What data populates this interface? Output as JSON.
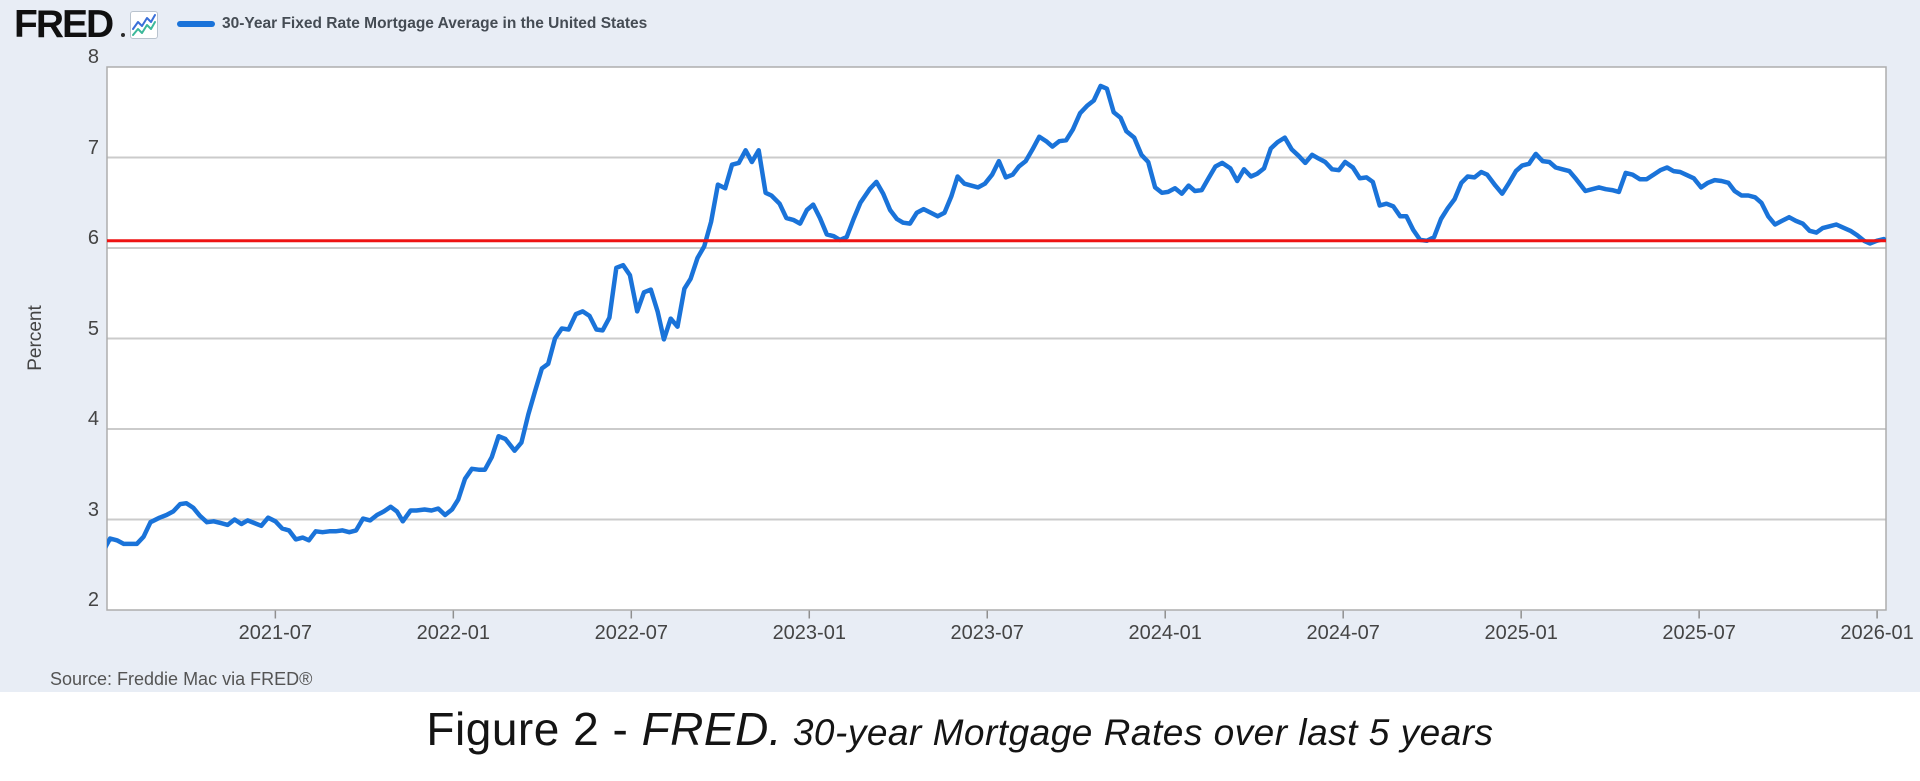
{
  "header": {
    "logo_text": "FRED",
    "logo_icon": "sparkline-chart-icon"
  },
  "source_note": "Source: Freddie Mac via FRED®",
  "caption": {
    "part1": "Figure 2 - ",
    "part2": "FRED.",
    "part3": " 30-year Mortgage Rates over last 5 years"
  },
  "colors": {
    "background": "#e8edf5",
    "plot_background": "#ffffff",
    "gridline": "#cbcbcb",
    "axis_border": "#adadad",
    "tick_mark": "#8f8f8f",
    "series_blue": "#1a73d9",
    "reference_red": "#ee1313",
    "text": "#444444"
  },
  "chart_data": {
    "type": "line",
    "title": "30-Year Fixed Rate Mortgage Average in the United States",
    "ylabel": "Percent",
    "ylim": [
      2,
      8
    ],
    "yticks": [
      2,
      3,
      4,
      5,
      6,
      7,
      8
    ],
    "xtick_labels": [
      "2021-07",
      "2022-01",
      "2022-07",
      "2023-01",
      "2023-07",
      "2024-01",
      "2024-07",
      "2025-01",
      "2025-07",
      "2026-01"
    ],
    "x_range_decimal_year": [
      2021.027,
      2026.025
    ],
    "grid": true,
    "legend_position": "top-left",
    "series": [
      {
        "name": "30-Year Fixed Rate Mortgage Average in the United States",
        "color": "#1a73d9",
        "points": [
          [
            "2021-01-07",
            2.65
          ],
          [
            "2021-01-14",
            2.79
          ],
          [
            "2021-01-21",
            2.77
          ],
          [
            "2021-01-28",
            2.73
          ],
          [
            "2021-02-04",
            2.73
          ],
          [
            "2021-02-11",
            2.73
          ],
          [
            "2021-02-18",
            2.81
          ],
          [
            "2021-02-25",
            2.97
          ],
          [
            "2021-03-04",
            3.02
          ],
          [
            "2021-03-11",
            3.05
          ],
          [
            "2021-03-18",
            3.09
          ],
          [
            "2021-03-25",
            3.17
          ],
          [
            "2021-04-01",
            3.18
          ],
          [
            "2021-04-08",
            3.13
          ],
          [
            "2021-04-15",
            3.04
          ],
          [
            "2021-04-22",
            2.97
          ],
          [
            "2021-04-29",
            2.98
          ],
          [
            "2021-05-06",
            2.96
          ],
          [
            "2021-05-13",
            2.94
          ],
          [
            "2021-05-20",
            3.0
          ],
          [
            "2021-05-27",
            2.95
          ],
          [
            "2021-06-03",
            2.99
          ],
          [
            "2021-06-10",
            2.96
          ],
          [
            "2021-06-17",
            2.93
          ],
          [
            "2021-06-24",
            3.02
          ],
          [
            "2021-07-01",
            2.98
          ],
          [
            "2021-07-08",
            2.9
          ],
          [
            "2021-07-15",
            2.88
          ],
          [
            "2021-07-22",
            2.78
          ],
          [
            "2021-07-29",
            2.8
          ],
          [
            "2021-08-05",
            2.77
          ],
          [
            "2021-08-12",
            2.87
          ],
          [
            "2021-08-19",
            2.86
          ],
          [
            "2021-08-26",
            2.87
          ],
          [
            "2021-09-02",
            2.87
          ],
          [
            "2021-09-09",
            2.88
          ],
          [
            "2021-09-16",
            2.86
          ],
          [
            "2021-09-23",
            2.88
          ],
          [
            "2021-09-30",
            3.01
          ],
          [
            "2021-10-07",
            2.99
          ],
          [
            "2021-10-14",
            3.05
          ],
          [
            "2021-10-21",
            3.09
          ],
          [
            "2021-10-28",
            3.14
          ],
          [
            "2021-11-04",
            3.09
          ],
          [
            "2021-11-10",
            2.98
          ],
          [
            "2021-11-18",
            3.1
          ],
          [
            "2021-11-24",
            3.1
          ],
          [
            "2021-12-02",
            3.11
          ],
          [
            "2021-12-09",
            3.1
          ],
          [
            "2021-12-16",
            3.12
          ],
          [
            "2021-12-23",
            3.05
          ],
          [
            "2021-12-30",
            3.11
          ],
          [
            "2022-01-06",
            3.22
          ],
          [
            "2022-01-13",
            3.45
          ],
          [
            "2022-01-20",
            3.56
          ],
          [
            "2022-01-27",
            3.55
          ],
          [
            "2022-02-03",
            3.55
          ],
          [
            "2022-02-10",
            3.69
          ],
          [
            "2022-02-17",
            3.92
          ],
          [
            "2022-02-24",
            3.89
          ],
          [
            "2022-03-03",
            3.76
          ],
          [
            "2022-03-10",
            3.85
          ],
          [
            "2022-03-17",
            4.16
          ],
          [
            "2022-03-24",
            4.42
          ],
          [
            "2022-03-31",
            4.67
          ],
          [
            "2022-04-07",
            4.72
          ],
          [
            "2022-04-14",
            5.0
          ],
          [
            "2022-04-21",
            5.11
          ],
          [
            "2022-04-28",
            5.1
          ],
          [
            "2022-05-05",
            5.27
          ],
          [
            "2022-05-12",
            5.3
          ],
          [
            "2022-05-19",
            5.25
          ],
          [
            "2022-05-26",
            5.1
          ],
          [
            "2022-06-02",
            5.09
          ],
          [
            "2022-06-09",
            5.23
          ],
          [
            "2022-06-16",
            5.78
          ],
          [
            "2022-06-23",
            5.81
          ],
          [
            "2022-06-30",
            5.7
          ],
          [
            "2022-07-07",
            5.3
          ],
          [
            "2022-07-14",
            5.51
          ],
          [
            "2022-07-21",
            5.54
          ],
          [
            "2022-07-28",
            5.3
          ],
          [
            "2022-08-04",
            4.99
          ],
          [
            "2022-08-11",
            5.22
          ],
          [
            "2022-08-18",
            5.13
          ],
          [
            "2022-08-25",
            5.55
          ],
          [
            "2022-09-01",
            5.66
          ],
          [
            "2022-09-08",
            5.89
          ],
          [
            "2022-09-15",
            6.02
          ],
          [
            "2022-09-22",
            6.29
          ],
          [
            "2022-09-29",
            6.7
          ],
          [
            "2022-10-06",
            6.66
          ],
          [
            "2022-10-13",
            6.92
          ],
          [
            "2022-10-20",
            6.94
          ],
          [
            "2022-10-27",
            7.08
          ],
          [
            "2022-11-03",
            6.95
          ],
          [
            "2022-11-10",
            7.08
          ],
          [
            "2022-11-17",
            6.61
          ],
          [
            "2022-11-23",
            6.58
          ],
          [
            "2022-12-01",
            6.49
          ],
          [
            "2022-12-08",
            6.33
          ],
          [
            "2022-12-15",
            6.31
          ],
          [
            "2022-12-22",
            6.27
          ],
          [
            "2022-12-29",
            6.42
          ],
          [
            "2023-01-05",
            6.48
          ],
          [
            "2023-01-12",
            6.33
          ],
          [
            "2023-01-19",
            6.15
          ],
          [
            "2023-01-26",
            6.13
          ],
          [
            "2023-02-02",
            6.09
          ],
          [
            "2023-02-09",
            6.12
          ],
          [
            "2023-02-16",
            6.32
          ],
          [
            "2023-02-23",
            6.5
          ],
          [
            "2023-03-02",
            6.65
          ],
          [
            "2023-03-09",
            6.73
          ],
          [
            "2023-03-16",
            6.6
          ],
          [
            "2023-03-23",
            6.42
          ],
          [
            "2023-03-30",
            6.32
          ],
          [
            "2023-04-06",
            6.28
          ],
          [
            "2023-04-13",
            6.27
          ],
          [
            "2023-04-20",
            6.39
          ],
          [
            "2023-04-27",
            6.43
          ],
          [
            "2023-05-04",
            6.39
          ],
          [
            "2023-05-11",
            6.35
          ],
          [
            "2023-05-18",
            6.39
          ],
          [
            "2023-05-25",
            6.57
          ],
          [
            "2023-06-01",
            6.79
          ],
          [
            "2023-06-08",
            6.71
          ],
          [
            "2023-06-15",
            6.69
          ],
          [
            "2023-06-22",
            6.67
          ],
          [
            "2023-06-29",
            6.71
          ],
          [
            "2023-07-06",
            6.81
          ],
          [
            "2023-07-13",
            6.96
          ],
          [
            "2023-07-20",
            6.78
          ],
          [
            "2023-07-27",
            6.81
          ],
          [
            "2023-08-03",
            6.9
          ],
          [
            "2023-08-10",
            6.96
          ],
          [
            "2023-08-17",
            7.09
          ],
          [
            "2023-08-24",
            7.23
          ],
          [
            "2023-08-31",
            7.18
          ],
          [
            "2023-09-07",
            7.12
          ],
          [
            "2023-09-14",
            7.18
          ],
          [
            "2023-09-21",
            7.19
          ],
          [
            "2023-09-28",
            7.31
          ],
          [
            "2023-10-05",
            7.49
          ],
          [
            "2023-10-12",
            7.57
          ],
          [
            "2023-10-19",
            7.63
          ],
          [
            "2023-10-26",
            7.79
          ],
          [
            "2023-11-02",
            7.76
          ],
          [
            "2023-11-09",
            7.5
          ],
          [
            "2023-11-16",
            7.44
          ],
          [
            "2023-11-22",
            7.29
          ],
          [
            "2023-11-30",
            7.22
          ],
          [
            "2023-12-07",
            7.03
          ],
          [
            "2023-12-14",
            6.95
          ],
          [
            "2023-12-21",
            6.67
          ],
          [
            "2023-12-28",
            6.61
          ],
          [
            "2024-01-04",
            6.62
          ],
          [
            "2024-01-11",
            6.66
          ],
          [
            "2024-01-18",
            6.6
          ],
          [
            "2024-01-25",
            6.69
          ],
          [
            "2024-02-01",
            6.63
          ],
          [
            "2024-02-08",
            6.64
          ],
          [
            "2024-02-15",
            6.77
          ],
          [
            "2024-02-22",
            6.9
          ],
          [
            "2024-02-29",
            6.94
          ],
          [
            "2024-03-07",
            6.88
          ],
          [
            "2024-03-14",
            6.74
          ],
          [
            "2024-03-21",
            6.87
          ],
          [
            "2024-03-28",
            6.79
          ],
          [
            "2024-04-04",
            6.82
          ],
          [
            "2024-04-11",
            6.88
          ],
          [
            "2024-04-18",
            7.1
          ],
          [
            "2024-04-25",
            7.17
          ],
          [
            "2024-05-02",
            7.22
          ],
          [
            "2024-05-09",
            7.09
          ],
          [
            "2024-05-16",
            7.02
          ],
          [
            "2024-05-23",
            6.94
          ],
          [
            "2024-05-30",
            7.03
          ],
          [
            "2024-06-06",
            6.99
          ],
          [
            "2024-06-13",
            6.95
          ],
          [
            "2024-06-20",
            6.87
          ],
          [
            "2024-06-27",
            6.86
          ],
          [
            "2024-07-03",
            6.95
          ],
          [
            "2024-07-11",
            6.89
          ],
          [
            "2024-07-18",
            6.77
          ],
          [
            "2024-07-25",
            6.78
          ],
          [
            "2024-08-01",
            6.73
          ],
          [
            "2024-08-08",
            6.47
          ],
          [
            "2024-08-15",
            6.49
          ],
          [
            "2024-08-22",
            6.46
          ],
          [
            "2024-08-29",
            6.35
          ],
          [
            "2024-09-05",
            6.35
          ],
          [
            "2024-09-12",
            6.2
          ],
          [
            "2024-09-19",
            6.09
          ],
          [
            "2024-09-26",
            6.08
          ],
          [
            "2024-10-03",
            6.12
          ],
          [
            "2024-10-10",
            6.32
          ],
          [
            "2024-10-17",
            6.44
          ],
          [
            "2024-10-24",
            6.54
          ],
          [
            "2024-10-31",
            6.72
          ],
          [
            "2024-11-07",
            6.79
          ],
          [
            "2024-11-14",
            6.78
          ],
          [
            "2024-11-21",
            6.84
          ],
          [
            "2024-11-27",
            6.81
          ],
          [
            "2024-12-05",
            6.69
          ],
          [
            "2024-12-12",
            6.6
          ],
          [
            "2024-12-19",
            6.72
          ],
          [
            "2024-12-26",
            6.85
          ],
          [
            "2025-01-02",
            6.91
          ],
          [
            "2025-01-09",
            6.93
          ],
          [
            "2025-01-16",
            7.04
          ],
          [
            "2025-01-23",
            6.96
          ],
          [
            "2025-01-30",
            6.95
          ],
          [
            "2025-02-06",
            6.89
          ],
          [
            "2025-02-13",
            6.87
          ],
          [
            "2025-02-20",
            6.85
          ],
          [
            "2025-02-27",
            6.76
          ],
          [
            "2025-03-06",
            6.63
          ],
          [
            "2025-03-13",
            6.65
          ],
          [
            "2025-03-20",
            6.67
          ],
          [
            "2025-03-27",
            6.65
          ],
          [
            "2025-04-03",
            6.64
          ],
          [
            "2025-04-10",
            6.62
          ],
          [
            "2025-04-17",
            6.83
          ],
          [
            "2025-04-24",
            6.81
          ],
          [
            "2025-05-01",
            6.76
          ],
          [
            "2025-05-08",
            6.76
          ],
          [
            "2025-05-15",
            6.81
          ],
          [
            "2025-05-22",
            6.86
          ],
          [
            "2025-05-29",
            6.89
          ],
          [
            "2025-06-05",
            6.85
          ],
          [
            "2025-06-12",
            6.84
          ],
          [
            "2025-06-18",
            6.81
          ],
          [
            "2025-06-26",
            6.77
          ],
          [
            "2025-07-03",
            6.67
          ],
          [
            "2025-07-10",
            6.72
          ],
          [
            "2025-07-17",
            6.75
          ],
          [
            "2025-07-24",
            6.74
          ],
          [
            "2025-07-31",
            6.72
          ],
          [
            "2025-08-07",
            6.63
          ],
          [
            "2025-08-14",
            6.58
          ],
          [
            "2025-08-21",
            6.58
          ],
          [
            "2025-08-28",
            6.56
          ],
          [
            "2025-09-04",
            6.5
          ],
          [
            "2025-09-11",
            6.35
          ],
          [
            "2025-09-18",
            6.26
          ],
          [
            "2025-09-25",
            6.3
          ],
          [
            "2025-10-02",
            6.34
          ],
          [
            "2025-10-09",
            6.3
          ],
          [
            "2025-10-16",
            6.27
          ],
          [
            "2025-10-23",
            6.19
          ],
          [
            "2025-10-30",
            6.17
          ],
          [
            "2025-11-06",
            6.22
          ],
          [
            "2025-11-13",
            6.24
          ],
          [
            "2025-11-20",
            6.26
          ],
          [
            "2025-11-26",
            6.23
          ],
          [
            "2025-12-04",
            6.19
          ],
          [
            "2025-12-11",
            6.14
          ],
          [
            "2025-12-18",
            6.08
          ],
          [
            "2025-12-24",
            6.05
          ],
          [
            "2025-12-31",
            6.08
          ],
          [
            "2026-01-08",
            6.1
          ]
        ]
      },
      {
        "name": "horizontal-reference-line",
        "color": "#ee1313",
        "constant_value": 6.08
      }
    ]
  }
}
